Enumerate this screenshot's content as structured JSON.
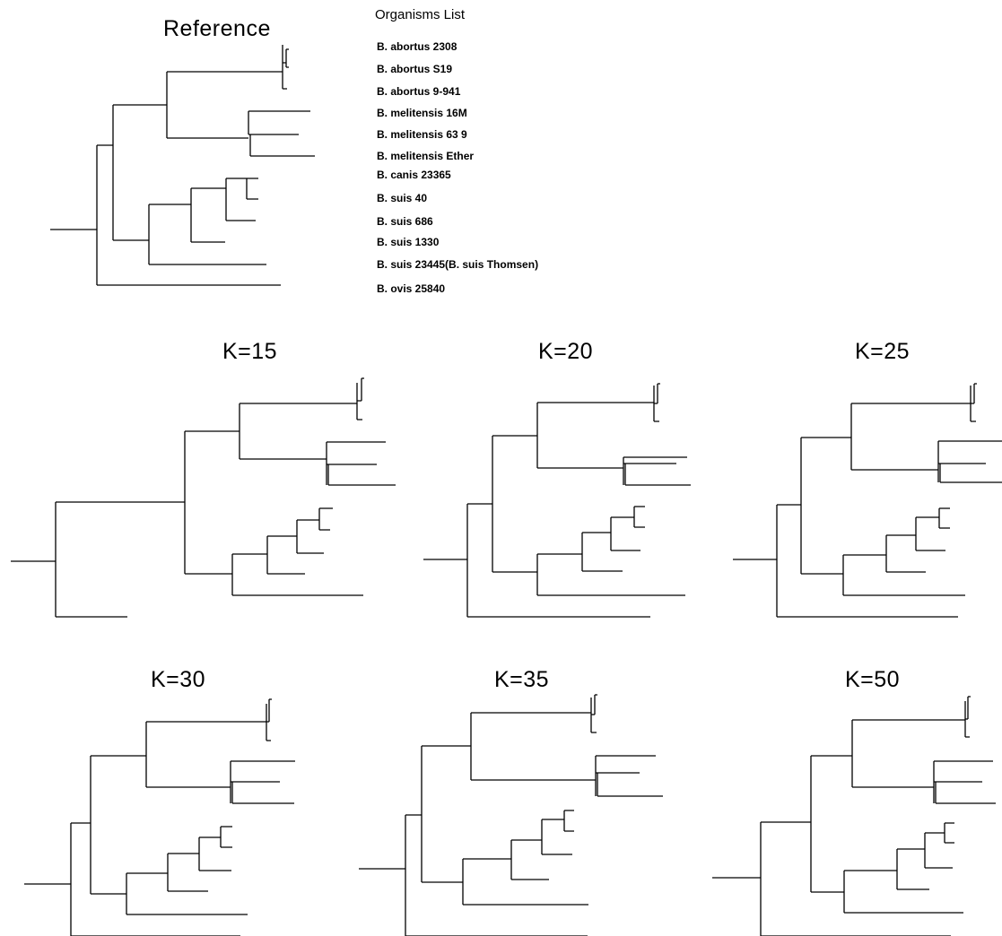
{
  "figure": {
    "list_heading": "Organisms List",
    "organisms": [
      "B. abortus 2308",
      "B. abortus S19",
      "B. abortus 9-941",
      "B. melitensis 16M",
      "B. melitensis 63 9",
      "B. melitensis Ether",
      "B. canis 23365",
      "B. suis 40",
      "B. suis 686",
      "B. suis 1330",
      "B. suis 23445(B. suis Thomsen)",
      "B. ovis 25840"
    ],
    "trees": [
      {
        "title": "Reference"
      },
      {
        "title": "K=15"
      },
      {
        "title": "K=20"
      },
      {
        "title": "K=25"
      },
      {
        "title": "K=30"
      },
      {
        "title": "K=35"
      },
      {
        "title": "K=50"
      }
    ]
  }
}
